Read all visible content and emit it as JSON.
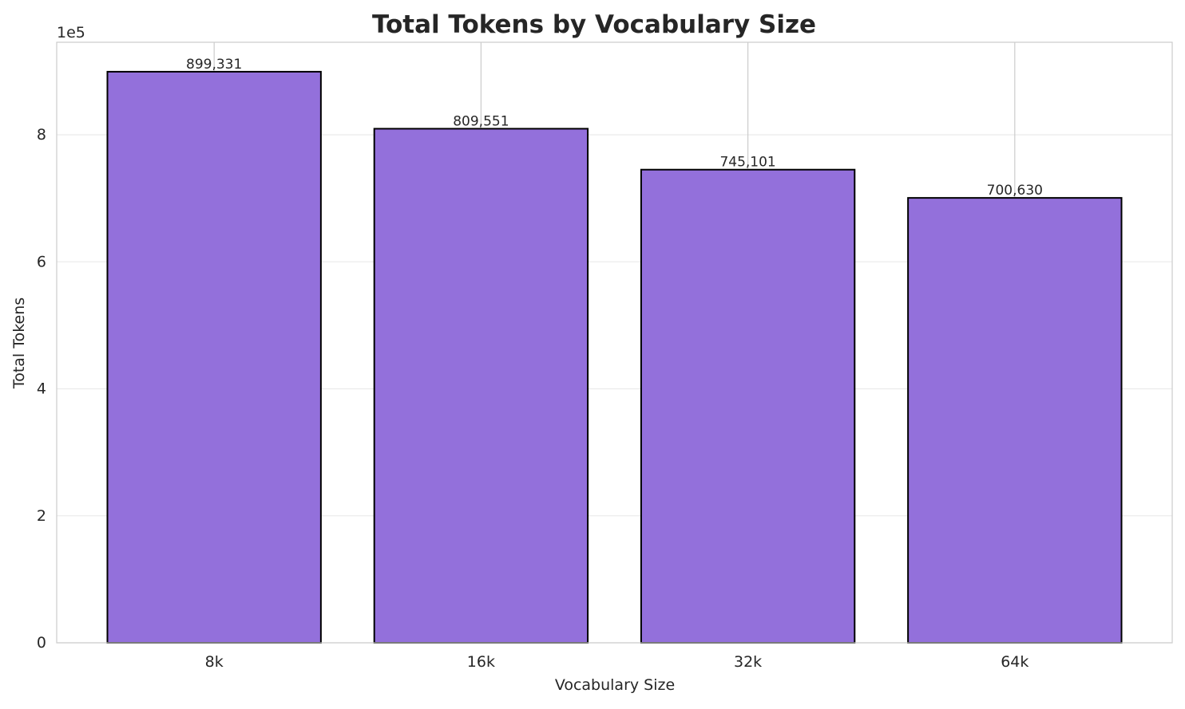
{
  "chart_data": {
    "type": "bar",
    "title": "Total Tokens by Vocabulary Size",
    "xlabel": "Vocabulary Size",
    "ylabel": "Total Tokens",
    "categories": [
      "8k",
      "16k",
      "32k",
      "64k"
    ],
    "values": [
      899331,
      809551,
      745101,
      700630
    ],
    "data_labels": [
      "899,331",
      "809,551",
      "745,101",
      "700,630"
    ],
    "ylim": [
      0,
      945700
    ],
    "yticks": [
      0,
      200000,
      400000,
      600000,
      800000
    ],
    "ytick_labels": [
      "0",
      "2",
      "4",
      "6",
      "8"
    ],
    "y_offset_label": "1e5",
    "grid": true,
    "bar_color": "#9370DB",
    "bar_edge_color": "#000000"
  }
}
